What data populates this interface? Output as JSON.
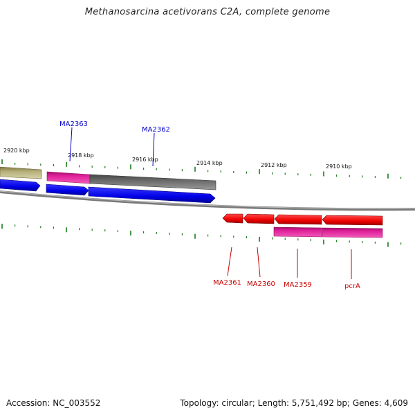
{
  "title": "Methanosarcina acetivorans C2A, complete genome",
  "footer": {
    "accession": "Accession: NC_003552",
    "summary": "Topology: circular; Length: 5,751,492 bp; Genes: 4,609"
  },
  "scale_labels": [
    "2920 kbp",
    "2918 kbp",
    "2916 kbp",
    "2914 kbp",
    "2912 kbp",
    "2910 kbp"
  ],
  "gene_labels_forward": [
    "MA2363",
    "MA2362"
  ],
  "gene_labels_reverse": [
    "MA2361",
    "MA2360",
    "MA2359",
    "pcrA"
  ],
  "colors": {
    "forward_gene": "#0000ee",
    "reverse_gene": "#ee0000",
    "feature_magenta": "#e0209a",
    "feature_gray": "#6a6a6a",
    "feature_olive": "#b7b07a",
    "tick": "#1a7a1a",
    "backbone": "#8a8a8a"
  }
}
